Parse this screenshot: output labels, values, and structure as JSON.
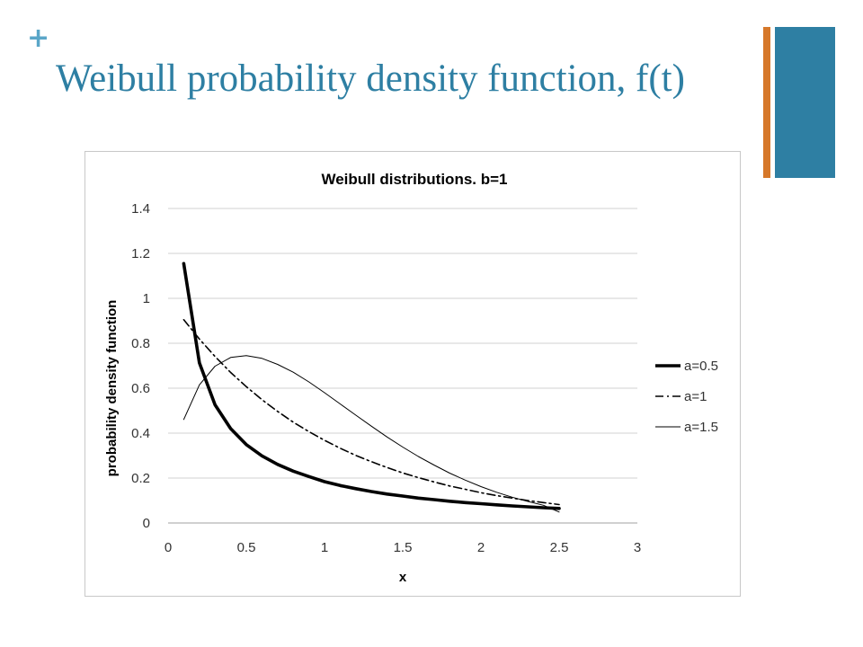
{
  "slide": {
    "bullet": "+",
    "title": "Weibull probability density function, f(t)"
  },
  "colors": {
    "accent_blue": "#2e7fa3",
    "accent_orange": "#d6782a",
    "title": "#2e7fa3",
    "bullet": "#5aa6c8",
    "series_line": "#000000",
    "gridline": "#d0d0d0"
  },
  "chart_data": {
    "type": "line",
    "title": "Weibull distributions. b=1",
    "xlabel": "x",
    "ylabel": "probability density function",
    "xlim": [
      0,
      3
    ],
    "ylim": [
      0,
      1.4
    ],
    "xticks": [
      "0",
      "0.5",
      "1",
      "1.5",
      "2",
      "2.5",
      "3"
    ],
    "yticks": [
      "0",
      "0.2",
      "0.4",
      "0.6",
      "0.8",
      "1",
      "1.2",
      "1.4"
    ],
    "grid": "horizontal",
    "legend_position": "right",
    "x": [
      0.1,
      0.2,
      0.3,
      0.4,
      0.5,
      0.6,
      0.7,
      0.8,
      0.9,
      1.0,
      1.1,
      1.2,
      1.3,
      1.4,
      1.5,
      1.6,
      1.7,
      1.8,
      1.9,
      2.0,
      2.1,
      2.2,
      2.3,
      2.4,
      2.5
    ],
    "series": [
      {
        "name": "a=0.5",
        "style": "thick",
        "values": [
          1.155,
          0.713,
          0.526,
          0.42,
          0.349,
          0.299,
          0.261,
          0.231,
          0.207,
          0.184,
          0.167,
          0.153,
          0.14,
          0.129,
          0.12,
          0.111,
          0.104,
          0.097,
          0.091,
          0.086,
          0.081,
          0.076,
          0.072,
          0.068,
          0.065
        ]
      },
      {
        "name": "a=1",
        "style": "dashdot",
        "values": [
          0.905,
          0.819,
          0.741,
          0.67,
          0.607,
          0.549,
          0.497,
          0.449,
          0.407,
          0.368,
          0.333,
          0.301,
          0.273,
          0.247,
          0.223,
          0.202,
          0.183,
          0.165,
          0.15,
          0.135,
          0.122,
          0.111,
          0.1,
          0.091,
          0.082
        ]
      },
      {
        "name": "a=1.5",
        "style": "thin",
        "values": [
          0.461,
          0.615,
          0.698,
          0.737,
          0.745,
          0.733,
          0.706,
          0.671,
          0.628,
          0.58,
          0.53,
          0.48,
          0.431,
          0.383,
          0.338,
          0.296,
          0.258,
          0.222,
          0.191,
          0.162,
          0.137,
          0.115,
          0.096,
          0.079,
          0.049
        ]
      }
    ]
  }
}
